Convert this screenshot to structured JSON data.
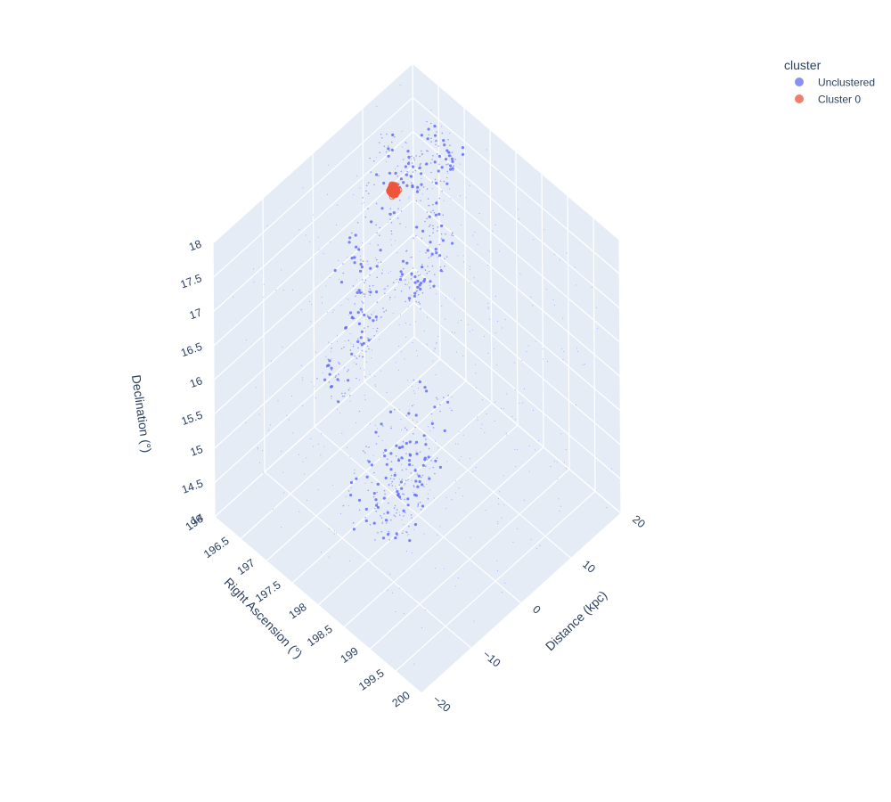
{
  "chart_data": {
    "type": "scatter",
    "projection": "3d",
    "axes": {
      "x": {
        "title": "Right Ascension (°)",
        "range": [
          196,
          200
        ],
        "ticks": [
          "196",
          "196.5",
          "197",
          "197.5",
          "198",
          "198.5",
          "199",
          "199.5",
          "200"
        ]
      },
      "y": {
        "title": "Distance (kpc)",
        "range": [
          -20,
          20
        ],
        "ticks": [
          "−20",
          "−10",
          "0",
          "10",
          "20"
        ]
      },
      "z": {
        "title": "Declination (°)",
        "range": [
          14,
          18
        ],
        "ticks": [
          "14",
          "14.5",
          "15",
          "15.5",
          "16",
          "16.5",
          "17",
          "17.5",
          "18"
        ]
      }
    },
    "grid": true,
    "legend": {
      "title": "cluster",
      "placement": "top-right",
      "entries": [
        {
          "name": "Unclustered",
          "color": "#8791f5"
        },
        {
          "name": "Cluster 0",
          "color": "#ef7f6c"
        }
      ]
    },
    "series": [
      {
        "name": "Unclustered",
        "color": "#636efa",
        "structures": [
          {
            "ra": [
              196.3,
              196.8
            ],
            "dist": [
              -2,
              8
            ],
            "dec": [
              15.0,
              16.0
            ]
          },
          {
            "ra": [
              197.8,
              198.6
            ],
            "dist": [
              -8,
              0
            ],
            "dec": [
              14.4,
              15.2
            ]
          },
          {
            "ra": [
              196.2,
              196.9
            ],
            "dist": [
              2,
              12
            ],
            "dec": [
              16.2,
              17.8
            ]
          },
          {
            "ra": [
              196.7,
              197.3
            ],
            "dist": [
              8,
              16
            ],
            "dec": [
              16.0,
              16.6
            ]
          },
          {
            "ra": [
              196.3,
              197.0
            ],
            "dist": [
              14,
              20
            ],
            "dec": [
              16.8,
              17.4
            ]
          },
          {
            "ra": [
              197.5,
              198.5
            ],
            "dist": [
              -12,
              4
            ],
            "dec": [
              14.6,
              15.6
            ]
          },
          {
            "ra": [
              196,
              200
            ],
            "dist": [
              -20,
              20
            ],
            "dec": [
              14,
              18
            ]
          }
        ]
      },
      {
        "name": "Cluster 0",
        "color": "#ef553b",
        "center": {
          "ra": 196.15,
          "dist": 14.5,
          "dec": 16.6
        },
        "spread": {
          "ra": 0.08,
          "dist": 0.8,
          "dec": 0.1
        }
      }
    ]
  }
}
